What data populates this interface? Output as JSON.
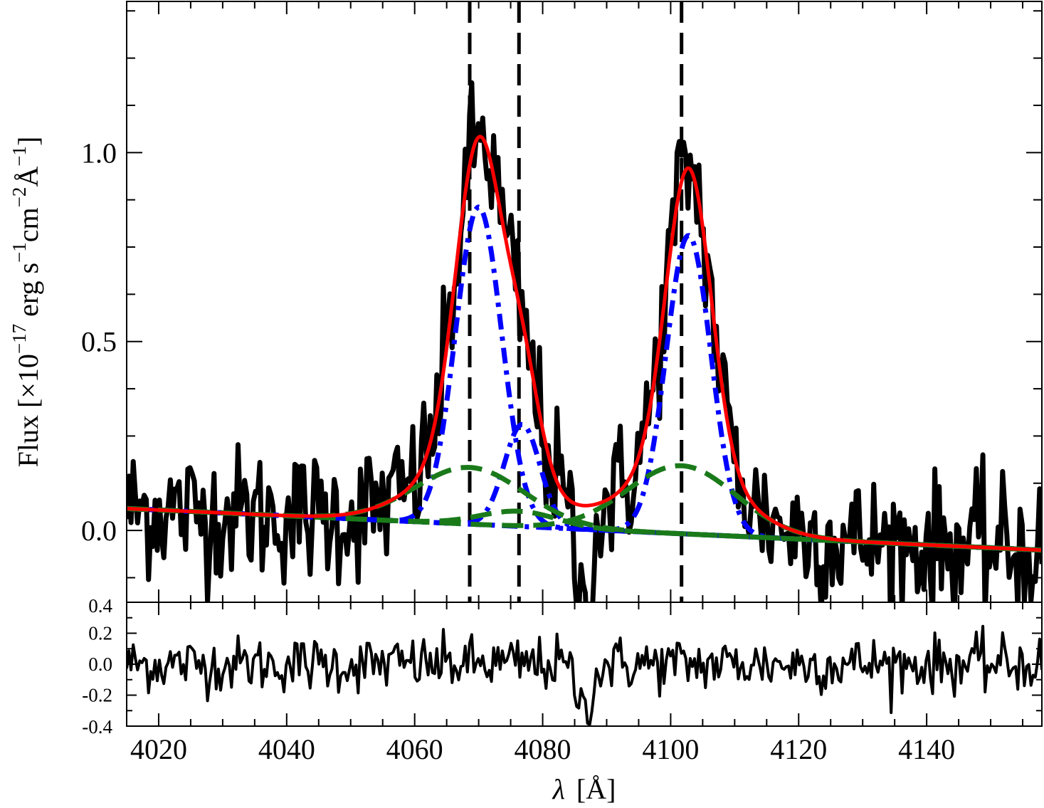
{
  "chart_data": {
    "type": "line",
    "title": "",
    "xlabel_symbol": "λ",
    "xlabel_unit": "[Å]",
    "ylabel": {
      "prefix": "Flux [×10",
      "exp1": "−17",
      "mid1": " erg s",
      "exp2": "−1",
      "mid2": "cm",
      "exp3": "−2",
      "mid3": "Å",
      "exp4": "−1",
      "suffix": "]"
    },
    "xlim": [
      4015,
      4158
    ],
    "x_ticks": [
      4020,
      4040,
      4060,
      4080,
      4100,
      4120,
      4140
    ],
    "x_tick_labels": [
      "4020",
      "4040",
      "4060",
      "4080",
      "4100",
      "4120",
      "4140"
    ],
    "main_panel": {
      "ylim": [
        -0.19,
        1.4
      ],
      "y_ticks": [
        0.0,
        0.5,
        1.0
      ],
      "y_tick_labels": [
        "0.0",
        "0.5",
        "1.0"
      ],
      "vertical_lines_x": [
        4068.6,
        4076.3,
        4101.7
      ],
      "continuum": {
        "x0": 4015,
        "y0": 0.058,
        "x1": 4158,
        "y1": -0.052
      },
      "components": [
        {
          "name": "narrow-1",
          "center": 4070.0,
          "sigma": 3.6,
          "amp": 0.84,
          "style": "blue-dashdot"
        },
        {
          "name": "narrow-2",
          "center": 4076.8,
          "sigma": 2.8,
          "amp": 0.27,
          "style": "blue-dashdot"
        },
        {
          "name": "narrow-3",
          "center": 4102.8,
          "sigma": 3.5,
          "amp": 0.79,
          "style": "blue-dashdot"
        },
        {
          "name": "broad-1",
          "center": 4068.6,
          "sigma": 8.5,
          "amp": 0.15,
          "style": "green-dashed"
        },
        {
          "name": "broad-2",
          "center": 4076.3,
          "sigma": 6.0,
          "amp": 0.04,
          "style": "green-dashed"
        },
        {
          "name": "broad-3",
          "center": 4101.7,
          "sigma": 8.5,
          "amp": 0.18,
          "style": "green-dashed"
        }
      ],
      "spectrum_points": 420,
      "spectrum_noise_amplitude": 0.09
    },
    "residual_panel": {
      "ylim": [
        -0.4,
        0.4
      ],
      "y_ticks": [
        -0.4,
        -0.2,
        0.0,
        0.2,
        0.4
      ],
      "y_tick_labels": [
        "-0.4",
        "-0.2",
        "0.0",
        "0.2",
        "0.4"
      ]
    },
    "colors": {
      "data": "#000000",
      "fit": "#ff0000",
      "narrow": "#0000ff",
      "broad": "#1a7a1a",
      "marker_lines": "#000000"
    }
  }
}
